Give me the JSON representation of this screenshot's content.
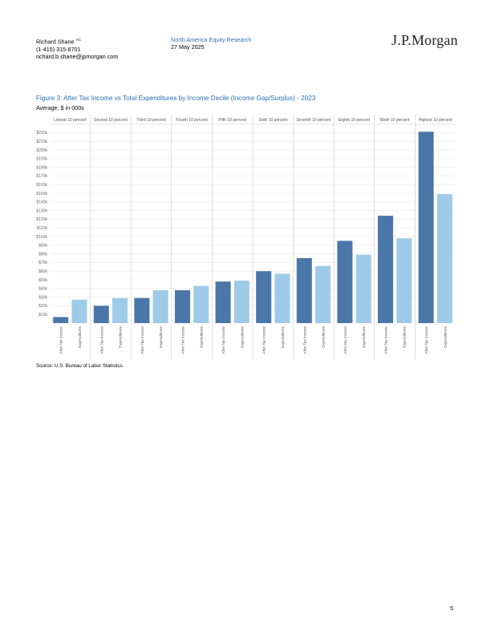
{
  "header": {
    "author_name": "Richard Shane",
    "author_suffix": "AC",
    "author_phone": "(1-415) 315-8701",
    "author_email": "richard.b.shane@jpmorgan.com",
    "report_name": "North America Equity Research",
    "report_date": "27 May 2025",
    "logo_text": "J.P.Morgan"
  },
  "figure": {
    "title": "Figure 3: After Tax Income vs Total Expenditures by Income Decile (Income Gap/Surplus) - 2023",
    "subtitle": "Average, $ in 000s",
    "source": "Source: U.S. Bureau of Labor Statistics."
  },
  "page_number": "5",
  "colors": {
    "after_tax": "#4a76a8",
    "expenditures": "#9fcbe8",
    "grid": "#ececec",
    "divider": "#cccccc",
    "title_blue": "#2a6fb5"
  },
  "chart_data": {
    "type": "bar",
    "groups": [
      "Lowest 10 percent",
      "Second 10 percent",
      "Third 10 percent",
      "Fourth 10 percent",
      "Fifth 10 percent",
      "Sixth 10 percent",
      "Seventh 10 percent",
      "Eighth 10 percent",
      "Ninth 10 percent",
      "Highest 10 percent"
    ],
    "bar_labels": [
      "After Tax Income",
      "Expenditures"
    ],
    "series": [
      {
        "name": "After Tax Income",
        "values": [
          7,
          20,
          29,
          38,
          48,
          60,
          75,
          95,
          124,
          221
        ]
      },
      {
        "name": "Expenditures",
        "values": [
          27,
          29,
          38,
          43,
          49,
          57,
          66,
          79,
          98,
          149
        ]
      }
    ],
    "y_ticks": [
      "$10k",
      "$20k",
      "$30k",
      "$40k",
      "$50k",
      "$60k",
      "$70k",
      "$80k",
      "$90k",
      "$100k",
      "$110k",
      "$120k",
      "$130k",
      "$140k",
      "$150k",
      "$160k",
      "$170k",
      "$180k",
      "$190k",
      "$200k",
      "$210k",
      "$220k"
    ],
    "ylim": [
      0,
      225
    ],
    "grid": true,
    "legend": "none"
  }
}
